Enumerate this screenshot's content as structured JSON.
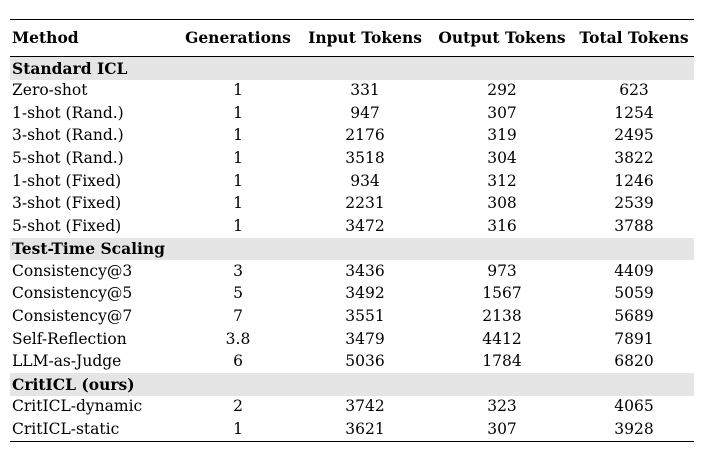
{
  "table": {
    "headers": {
      "method": "Method",
      "generations": "Generations",
      "input_tokens": "Input Tokens",
      "output_tokens": "Output Tokens",
      "total_tokens": "Total Tokens"
    },
    "groups": [
      {
        "title": "Standard ICL",
        "rows": [
          {
            "method": "Zero-shot",
            "generations": "1",
            "input": "331",
            "output": "292",
            "total": "623"
          },
          {
            "method": "1-shot (Rand.)",
            "generations": "1",
            "input": "947",
            "output": "307",
            "total": "1254"
          },
          {
            "method": "3-shot (Rand.)",
            "generations": "1",
            "input": "2176",
            "output": "319",
            "total": "2495"
          },
          {
            "method": "5-shot (Rand.)",
            "generations": "1",
            "input": "3518",
            "output": "304",
            "total": "3822"
          },
          {
            "method": "1-shot (Fixed)",
            "generations": "1",
            "input": "934",
            "output": "312",
            "total": "1246"
          },
          {
            "method": "3-shot (Fixed)",
            "generations": "1",
            "input": "2231",
            "output": "308",
            "total": "2539"
          },
          {
            "method": "5-shot (Fixed)",
            "generations": "1",
            "input": "3472",
            "output": "316",
            "total": "3788"
          }
        ]
      },
      {
        "title": "Test-Time Scaling",
        "rows": [
          {
            "method": "Consistency@3",
            "generations": "3",
            "input": "3436",
            "output": "973",
            "total": "4409"
          },
          {
            "method": "Consistency@5",
            "generations": "5",
            "input": "3492",
            "output": "1567",
            "total": "5059"
          },
          {
            "method": "Consistency@7",
            "generations": "7",
            "input": "3551",
            "output": "2138",
            "total": "5689"
          },
          {
            "method": "Self-Reflection",
            "generations": "3.8",
            "input": "3479",
            "output": "4412",
            "total": "7891"
          },
          {
            "method": "LLM-as-Judge",
            "generations": "6",
            "input": "5036",
            "output": "1784",
            "total": "6820"
          }
        ]
      },
      {
        "title": "CritICL (ours)",
        "rows": [
          {
            "method": "CritICL-dynamic",
            "generations": "2",
            "input": "3742",
            "output": "323",
            "total": "4065"
          },
          {
            "method": "CritICL-static",
            "generations": "1",
            "input": "3621",
            "output": "307",
            "total": "3928"
          }
        ]
      }
    ]
  }
}
